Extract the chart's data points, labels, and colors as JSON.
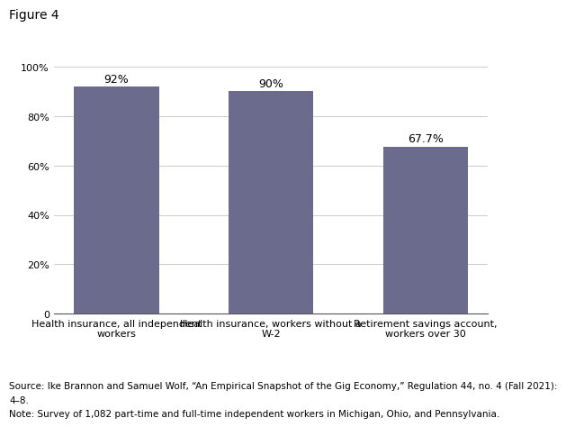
{
  "title": "Figure 4",
  "categories": [
    "Health insurance, all independent\nworkers",
    "Health insurance, workers without a\nW-2",
    "Retirement savings account,\nworkers over 30"
  ],
  "values": [
    92,
    90,
    67.7
  ],
  "bar_labels": [
    "92%",
    "90%",
    "67.7%"
  ],
  "bar_color": "#6b6b8d",
  "ylim": [
    0,
    100
  ],
  "yticks": [
    0,
    20,
    40,
    60,
    80,
    100
  ],
  "ytick_labels": [
    "0",
    "20%",
    "40%",
    "60%",
    "80%",
    "100%"
  ],
  "source_line1": "Source: Ike Brannon and Samuel Wolf, “An Empirical Snapshot of the Gig Economy,” Regulation 44, no. 4 (Fall 2021):",
  "source_line2": "4–8.",
  "note_text": "Note: Survey of 1,082 part-time and full-time independent workers in Michigan, Ohio, and Pennsylvania.",
  "title_fontsize": 10,
  "label_fontsize": 8,
  "annotation_fontsize": 9,
  "source_fontsize": 7.5,
  "background_color": "#ffffff",
  "bar_width": 0.55
}
